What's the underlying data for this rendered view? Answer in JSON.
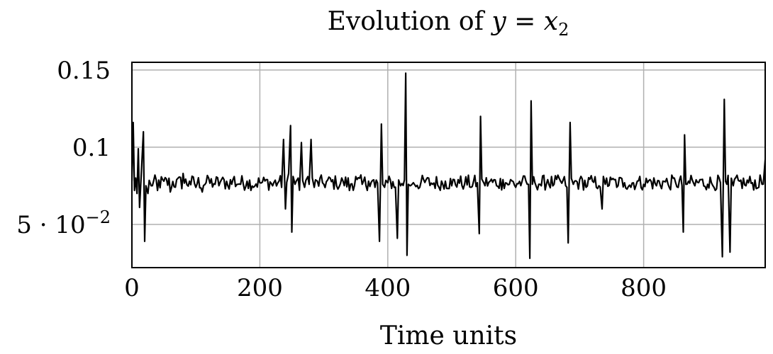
{
  "chart_data": {
    "type": "line",
    "title_prefix": "Evolution of ",
    "title_math": "y = x",
    "title_sub": "2",
    "xlabel": "Time units",
    "ylabel": "",
    "xlim": [
      0,
      990
    ],
    "ylim": [
      0.022,
      0.155
    ],
    "x_ticks": [
      {
        "value": 0,
        "label": "0"
      },
      {
        "value": 200,
        "label": "200"
      },
      {
        "value": 400,
        "label": "400"
      },
      {
        "value": 600,
        "label": "600"
      },
      {
        "value": 800,
        "label": "800"
      }
    ],
    "y_ticks": [
      {
        "value": 0.05,
        "label_base": "5 · 10",
        "label_exp": "−2"
      },
      {
        "value": 0.1,
        "label_base": "0.1",
        "label_exp": ""
      },
      {
        "value": 0.15,
        "label_base": "0.15",
        "label_exp": ""
      }
    ],
    "grid": true,
    "series": [
      {
        "baseline": 0.077,
        "noise_amplitude": 0.005,
        "x": [
          0,
          2,
          4,
          6,
          8,
          10,
          12,
          15,
          18,
          20,
          22,
          25,
          30,
          40,
          50,
          60,
          70,
          80,
          90,
          100,
          110,
          120,
          130,
          140,
          150,
          160,
          170,
          180,
          190,
          200,
          210,
          220,
          230,
          237,
          240,
          245,
          248,
          250,
          255,
          260,
          265,
          270,
          275,
          280,
          285,
          290,
          300,
          310,
          320,
          330,
          340,
          350,
          360,
          370,
          380,
          387,
          390,
          392,
          395,
          400,
          410,
          415,
          420,
          428,
          430,
          432,
          435,
          440,
          450,
          460,
          470,
          480,
          490,
          500,
          510,
          520,
          530,
          540,
          543,
          545,
          550,
          560,
          570,
          580,
          590,
          600,
          610,
          620,
          622,
          624,
          626,
          630,
          640,
          650,
          660,
          670,
          680,
          682,
          685,
          690,
          700,
          710,
          720,
          730,
          735,
          740,
          750,
          760,
          770,
          780,
          790,
          800,
          810,
          820,
          830,
          840,
          850,
          860,
          862,
          864,
          866,
          870,
          880,
          890,
          900,
          910,
          920,
          923,
          926,
          930,
          935,
          940,
          950,
          960,
          970,
          980,
          985,
          990
        ],
        "y": [
          0.078,
          0.116,
          0.072,
          0.08,
          0.07,
          0.099,
          0.061,
          0.085,
          0.11,
          0.039,
          0.075,
          0.07,
          0.075,
          0.072,
          0.078,
          0.071,
          0.079,
          0.083,
          0.078,
          0.074,
          0.071,
          0.08,
          0.076,
          0.079,
          0.075,
          0.081,
          0.076,
          0.078,
          0.074,
          0.077,
          0.079,
          0.075,
          0.078,
          0.105,
          0.06,
          0.083,
          0.114,
          0.045,
          0.076,
          0.08,
          0.103,
          0.074,
          0.081,
          0.105,
          0.074,
          0.078,
          0.076,
          0.08,
          0.075,
          0.078,
          0.072,
          0.081,
          0.076,
          0.078,
          0.074,
          0.039,
          0.115,
          0.076,
          0.074,
          0.077,
          0.074,
          0.041,
          0.075,
          0.148,
          0.03,
          0.076,
          0.075,
          0.077,
          0.074,
          0.079,
          0.076,
          0.074,
          0.078,
          0.075,
          0.079,
          0.076,
          0.074,
          0.077,
          0.044,
          0.12,
          0.077,
          0.078,
          0.075,
          0.079,
          0.076,
          0.074,
          0.078,
          0.076,
          0.028,
          0.13,
          0.076,
          0.077,
          0.075,
          0.079,
          0.076,
          0.078,
          0.074,
          0.038,
          0.116,
          0.076,
          0.079,
          0.074,
          0.078,
          0.075,
          0.06,
          0.076,
          0.079,
          0.075,
          0.077,
          0.074,
          0.078,
          0.076,
          0.079,
          0.075,
          0.078,
          0.074,
          0.077,
          0.075,
          0.045,
          0.108,
          0.076,
          0.078,
          0.075,
          0.079,
          0.076,
          0.074,
          0.077,
          0.029,
          0.131,
          0.076,
          0.032,
          0.075,
          0.078,
          0.075,
          0.077,
          0.074,
          0.076,
          0.092
        ]
      }
    ]
  }
}
